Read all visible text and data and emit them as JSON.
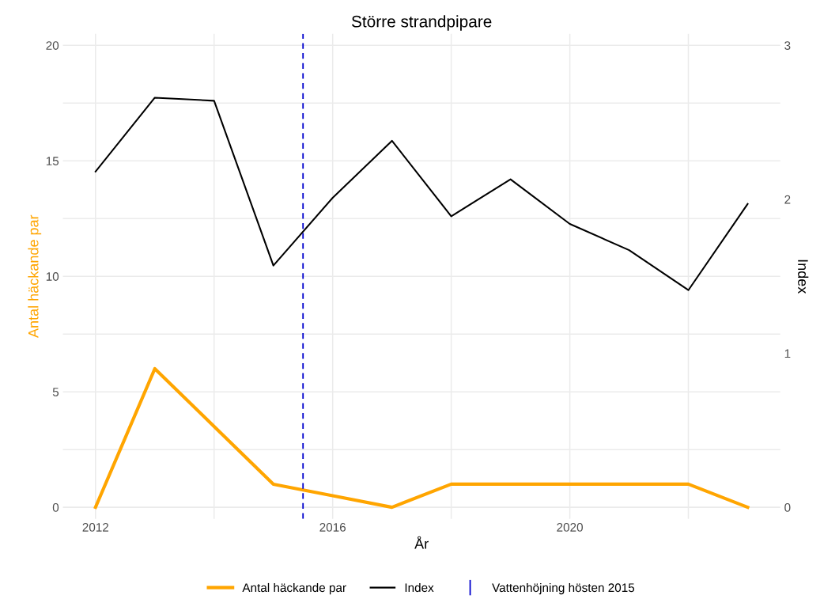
{
  "chart_data": {
    "type": "line",
    "title": "Större strandpipare",
    "xlabel": "År",
    "ylabel": "Antal häckande par",
    "y2label": "Index",
    "x": [
      2012,
      2013,
      2014,
      2015,
      2016,
      2017,
      2018,
      2019,
      2020,
      2021,
      2022,
      2023
    ],
    "series": [
      {
        "name": "Antal häckande par",
        "color": "#ffa500",
        "values": [
          0,
          6,
          3.5,
          1,
          0.5,
          0,
          1,
          1,
          1,
          1,
          1,
          0
        ]
      },
      {
        "name": "Index",
        "color": "#000000",
        "axis": "y2",
        "values": [
          2.18,
          2.66,
          2.64,
          1.57,
          2.01,
          2.38,
          1.89,
          2.13,
          1.84,
          1.67,
          1.41,
          1.97
        ]
      }
    ],
    "ref_lines": [
      {
        "axis": "x",
        "value": 2015.5,
        "label": "Vattenhöjning hösten 2015",
        "color": "#0000cd",
        "line_style": "dashed"
      }
    ],
    "xlim": [
      2011.45,
      2023.55
    ],
    "xticks": [
      2012,
      {
        "value": 2014,
        "label": null
      },
      2016,
      {
        "value": 2018,
        "label": null
      },
      2020,
      {
        "value": 2022,
        "label": null
      }
    ],
    "ylim": [
      -0.5,
      20.5
    ],
    "yticks": [
      0,
      {
        "value": 2.5,
        "label": null
      },
      5,
      {
        "value": 7.5,
        "label": null
      },
      10,
      {
        "value": 12.5,
        "label": null
      },
      15,
      {
        "value": 17.5,
        "label": null
      },
      20
    ],
    "y2lim": [
      -0.075,
      3.075
    ],
    "y2ticks": [
      0,
      1,
      2,
      3
    ],
    "grid": true,
    "legend": "bottom"
  }
}
